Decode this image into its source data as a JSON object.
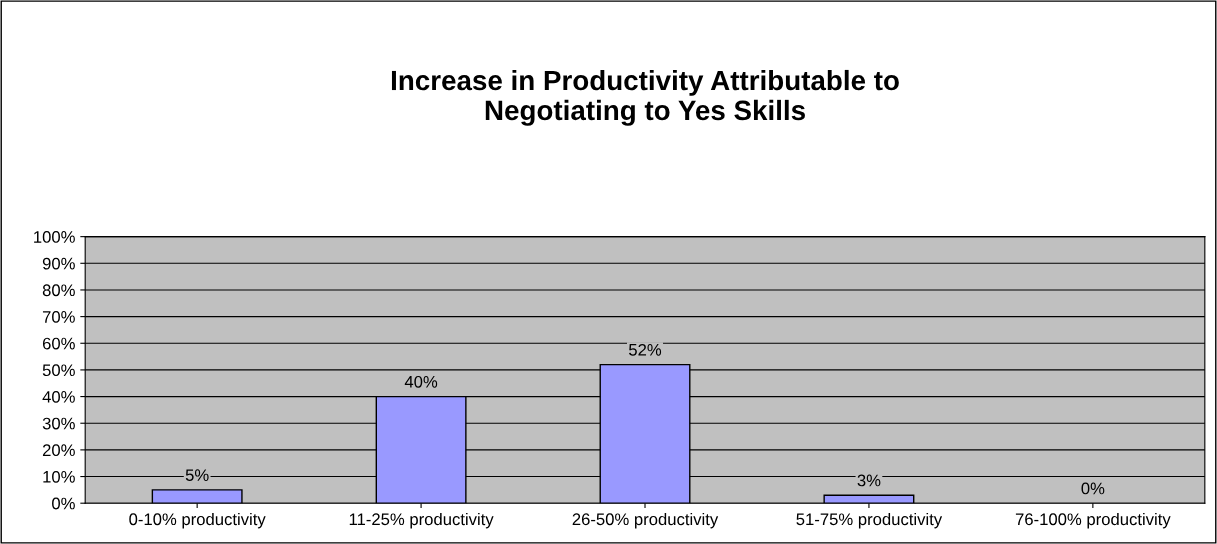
{
  "chart_data": {
    "type": "bar",
    "title": "Increase in Productivity Attributable to\nNegotiating to Yes Skills",
    "categories": [
      "0-10% productivity",
      "11-25% productivity",
      "26-50% productivity",
      "51-75% productivity",
      "76-100% productivity"
    ],
    "values": [
      5,
      40,
      52,
      3,
      0
    ],
    "color": "#9999ff",
    "value_labels": [
      "5%",
      "40%",
      "52%",
      "3%",
      "0%"
    ],
    "ylim": [
      0,
      100
    ],
    "yticks": [
      {
        "value": 0,
        "label": "0%"
      },
      {
        "value": 10,
        "label": "10%"
      },
      {
        "value": 20,
        "label": "20%"
      },
      {
        "value": 30,
        "label": "30%"
      },
      {
        "value": 40,
        "label": "40%"
      },
      {
        "value": 50,
        "label": "50%"
      },
      {
        "value": 60,
        "label": "60%"
      },
      {
        "value": 70,
        "label": "70%"
      },
      {
        "value": 80,
        "label": "80%"
      },
      {
        "value": 90,
        "label": "90%"
      },
      {
        "value": 100,
        "label": "100%"
      }
    ],
    "grid": "y",
    "legend": false
  }
}
